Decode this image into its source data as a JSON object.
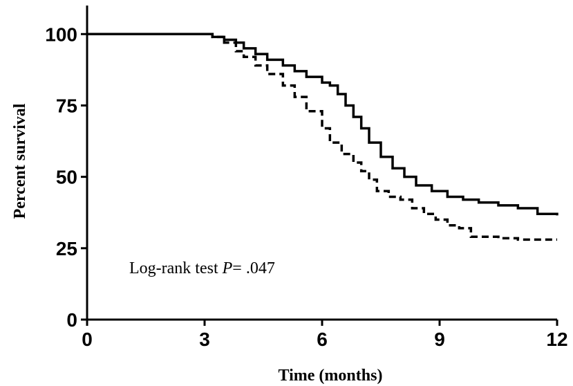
{
  "chart_data": {
    "type": "line",
    "title": "",
    "xlabel": "Time (months)",
    "ylabel": "Percent survival",
    "xlim": [
      0,
      12
    ],
    "ylim": [
      0,
      110
    ],
    "x_ticks": [
      0,
      3,
      6,
      9,
      12
    ],
    "x_tick_labels": [
      "0",
      "3",
      "6",
      "9",
      "12"
    ],
    "y_ticks": [
      0,
      25,
      50,
      75,
      100
    ],
    "y_tick_labels": [
      "0",
      "25",
      "50",
      "75",
      "100"
    ],
    "grid": false,
    "legend": "none",
    "annotation": {
      "prefix": "Log-rank test ",
      "p_symbol": "P",
      "suffix": "= .047"
    },
    "series": [
      {
        "style": "solid",
        "color": "#000000",
        "x": [
          0,
          2.9,
          3.2,
          3.5,
          3.8,
          4.0,
          4.3,
          4.6,
          5.0,
          5.3,
          5.6,
          6.0,
          6.2,
          6.4,
          6.6,
          6.8,
          7.0,
          7.2,
          7.5,
          7.8,
          8.1,
          8.4,
          8.8,
          9.2,
          9.6,
          10.0,
          10.5,
          11.0,
          11.5,
          12.0
        ],
        "y": [
          100,
          100,
          99,
          98,
          97,
          95,
          93,
          91,
          89,
          87,
          85,
          83,
          82,
          79,
          75,
          71,
          67,
          62,
          57,
          53,
          50,
          47,
          45,
          43,
          42,
          41,
          40,
          39,
          37,
          36.5
        ]
      },
      {
        "style": "dashed",
        "color": "#000000",
        "x": [
          0,
          2.9,
          3.2,
          3.5,
          3.8,
          4.0,
          4.3,
          4.6,
          5.0,
          5.3,
          5.6,
          6.0,
          6.2,
          6.5,
          6.8,
          7.0,
          7.2,
          7.4,
          7.7,
          8.0,
          8.3,
          8.6,
          8.9,
          9.2,
          9.5,
          9.8,
          10.5,
          11.0,
          12.0
        ],
        "y": [
          100,
          100,
          99,
          97,
          94,
          92,
          89,
          86,
          82,
          78,
          73,
          67,
          62,
          58,
          55,
          52,
          49,
          45,
          43,
          42,
          39,
          37,
          35,
          33,
          32,
          29,
          28.5,
          28,
          28
        ]
      }
    ]
  }
}
